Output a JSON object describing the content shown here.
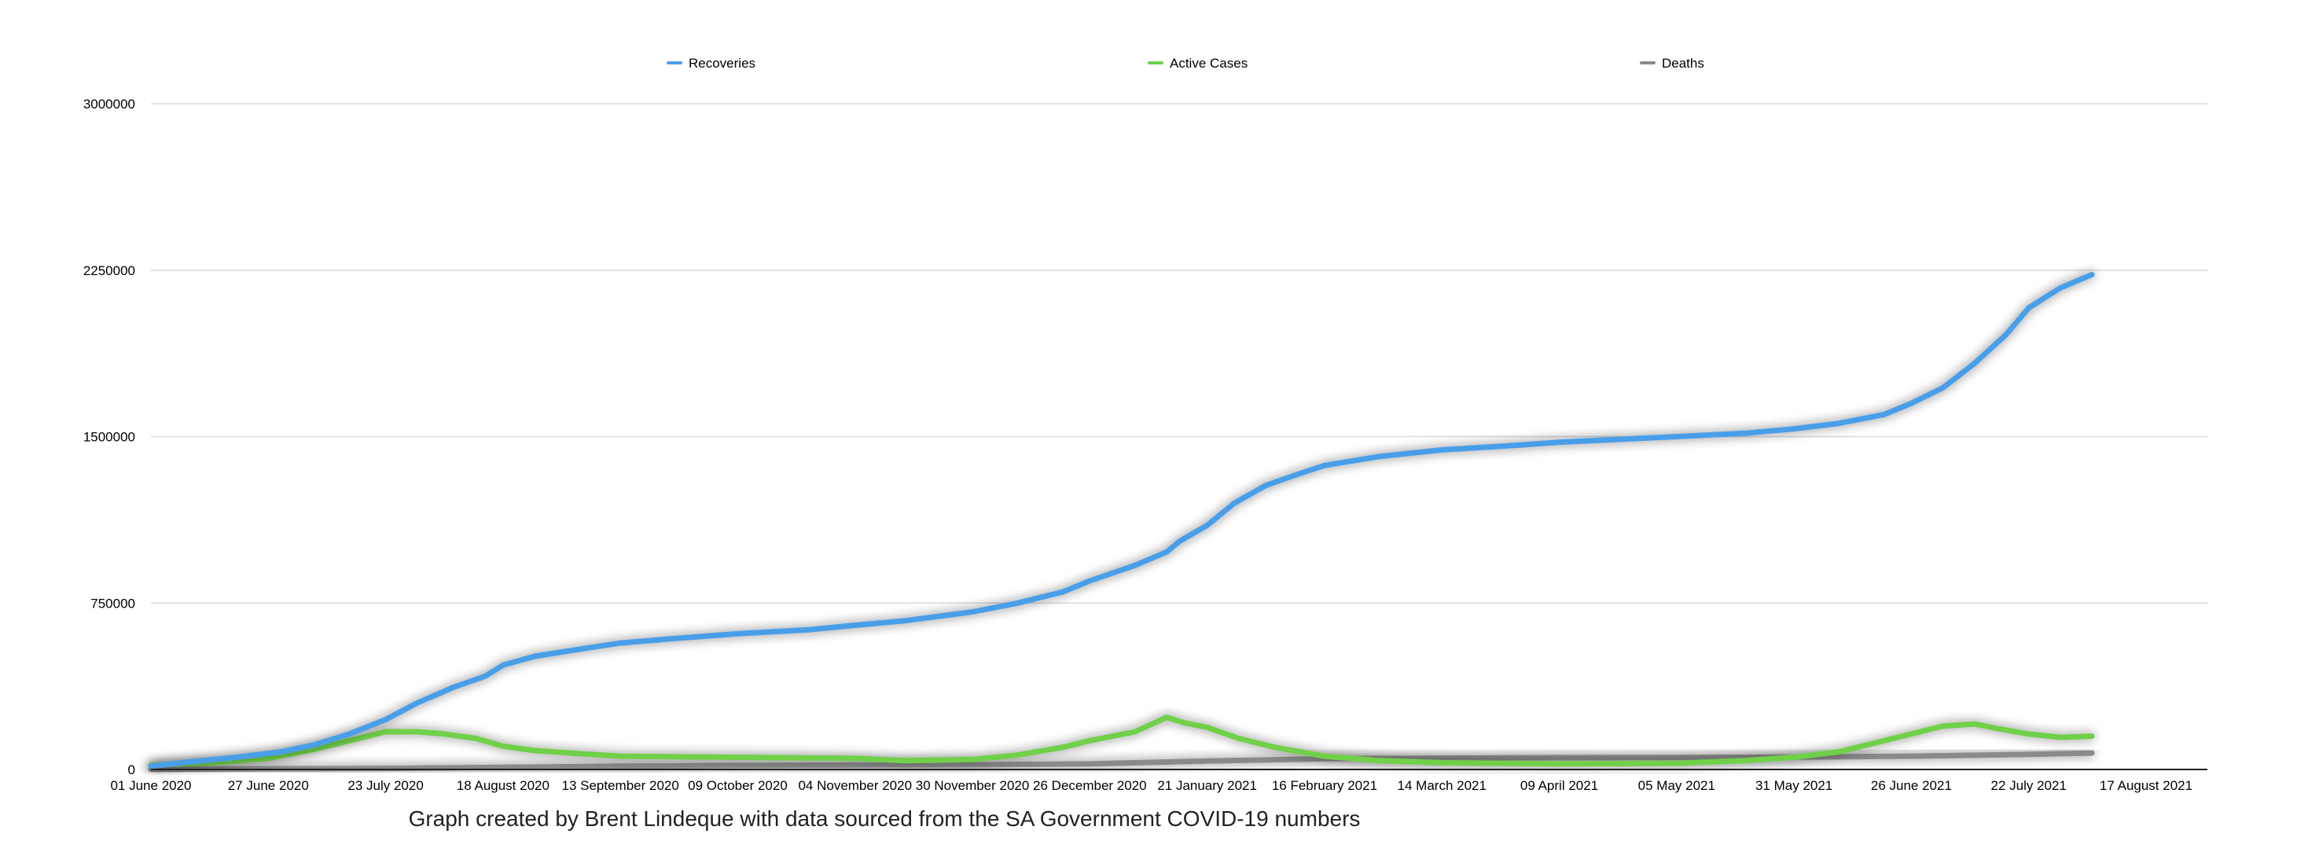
{
  "chart_data": {
    "type": "line",
    "title": "",
    "xlabel": "",
    "ylabel": "",
    "caption": "Graph created by Brent Lindeque with data sourced from the SA Government COVID-19 numbers",
    "ylim": [
      0,
      3000000
    ],
    "yticks": [
      "0",
      "750000",
      "1500000",
      "2250000",
      "3000000"
    ],
    "yticks_values": [
      0,
      750000,
      1500000,
      2250000,
      3000000
    ],
    "xlim": [
      "2020-06-01",
      "2021-08-17"
    ],
    "xticks": [
      "01 June 2020",
      "27 June 2020",
      "23 July 2020",
      "18 August 2020",
      "13 September 2020",
      "09 October 2020",
      "04 November 2020",
      "30 November 2020",
      "26 December 2020",
      "21 January 2021",
      "16 February 2021",
      "14 March 2021",
      "09 April 2021",
      "05 May 2021",
      "31 May 2021",
      "26 June 2021",
      "22 July 2021",
      "17 August 2021"
    ],
    "xticks_dates": [
      "2020-06-01",
      "2020-06-27",
      "2020-07-23",
      "2020-08-18",
      "2020-09-13",
      "2020-10-09",
      "2020-11-04",
      "2020-11-30",
      "2020-12-26",
      "2021-01-21",
      "2021-02-16",
      "2021-03-14",
      "2021-04-09",
      "2021-05-05",
      "2021-05-31",
      "2021-06-26",
      "2021-07-22",
      "2021-08-17"
    ],
    "grid": true,
    "legend_position": "top",
    "series": [
      {
        "name": "Recoveries",
        "color": "#4a9ee8",
        "points": [
          [
            "2020-06-01",
            15000
          ],
          [
            "2020-06-10",
            35000
          ],
          [
            "2020-06-20",
            55000
          ],
          [
            "2020-06-30",
            80000
          ],
          [
            "2020-07-07",
            110000
          ],
          [
            "2020-07-15",
            160000
          ],
          [
            "2020-07-23",
            225000
          ],
          [
            "2020-07-30",
            300000
          ],
          [
            "2020-08-07",
            370000
          ],
          [
            "2020-08-14",
            420000
          ],
          [
            "2020-08-18",
            470000
          ],
          [
            "2020-08-25",
            510000
          ],
          [
            "2020-09-05",
            545000
          ],
          [
            "2020-09-13",
            570000
          ],
          [
            "2020-09-25",
            590000
          ],
          [
            "2020-10-09",
            612000
          ],
          [
            "2020-10-25",
            630000
          ],
          [
            "2020-11-04",
            650000
          ],
          [
            "2020-11-15",
            670000
          ],
          [
            "2020-11-30",
            710000
          ],
          [
            "2020-12-10",
            750000
          ],
          [
            "2020-12-20",
            800000
          ],
          [
            "2020-12-26",
            850000
          ],
          [
            "2021-01-05",
            920000
          ],
          [
            "2021-01-12",
            980000
          ],
          [
            "2021-01-15",
            1030000
          ],
          [
            "2021-01-21",
            1100000
          ],
          [
            "2021-01-27",
            1200000
          ],
          [
            "2021-02-03",
            1280000
          ],
          [
            "2021-02-10",
            1330000
          ],
          [
            "2021-02-16",
            1370000
          ],
          [
            "2021-02-28",
            1410000
          ],
          [
            "2021-03-14",
            1440000
          ],
          [
            "2021-03-30",
            1460000
          ],
          [
            "2021-04-09",
            1475000
          ],
          [
            "2021-04-25",
            1490000
          ],
          [
            "2021-05-05",
            1500000
          ],
          [
            "2021-05-20",
            1515000
          ],
          [
            "2021-05-31",
            1535000
          ],
          [
            "2021-06-10",
            1560000
          ],
          [
            "2021-06-20",
            1600000
          ],
          [
            "2021-06-26",
            1650000
          ],
          [
            "2021-07-03",
            1720000
          ],
          [
            "2021-07-10",
            1830000
          ],
          [
            "2021-07-17",
            1960000
          ],
          [
            "2021-07-22",
            2080000
          ],
          [
            "2021-07-29",
            2170000
          ],
          [
            "2021-08-05",
            2230000
          ]
        ]
      },
      {
        "name": "Active Cases",
        "color": "#6fd04a",
        "points": [
          [
            "2020-06-01",
            20000
          ],
          [
            "2020-06-15",
            30000
          ],
          [
            "2020-06-27",
            50000
          ],
          [
            "2020-07-07",
            90000
          ],
          [
            "2020-07-15",
            130000
          ],
          [
            "2020-07-23",
            170000
          ],
          [
            "2020-07-30",
            170000
          ],
          [
            "2020-08-05",
            160000
          ],
          [
            "2020-08-12",
            140000
          ],
          [
            "2020-08-18",
            105000
          ],
          [
            "2020-08-25",
            85000
          ],
          [
            "2020-09-05",
            70000
          ],
          [
            "2020-09-13",
            60000
          ],
          [
            "2020-10-09",
            55000
          ],
          [
            "2020-11-04",
            50000
          ],
          [
            "2020-11-15",
            40000
          ],
          [
            "2020-11-30",
            45000
          ],
          [
            "2020-12-10",
            65000
          ],
          [
            "2020-12-20",
            100000
          ],
          [
            "2020-12-26",
            130000
          ],
          [
            "2021-01-05",
            170000
          ],
          [
            "2021-01-12",
            235000
          ],
          [
            "2021-01-16",
            210000
          ],
          [
            "2021-01-21",
            190000
          ],
          [
            "2021-01-28",
            140000
          ],
          [
            "2021-02-05",
            100000
          ],
          [
            "2021-02-16",
            60000
          ],
          [
            "2021-02-28",
            40000
          ],
          [
            "2021-03-14",
            30000
          ],
          [
            "2021-04-09",
            25000
          ],
          [
            "2021-05-05",
            28000
          ],
          [
            "2021-05-20",
            40000
          ],
          [
            "2021-05-31",
            55000
          ],
          [
            "2021-06-10",
            80000
          ],
          [
            "2021-06-20",
            130000
          ],
          [
            "2021-06-26",
            160000
          ],
          [
            "2021-07-03",
            195000
          ],
          [
            "2021-07-10",
            205000
          ],
          [
            "2021-07-15",
            185000
          ],
          [
            "2021-07-22",
            160000
          ],
          [
            "2021-07-29",
            145000
          ],
          [
            "2021-08-05",
            150000
          ]
        ]
      },
      {
        "name": "Deaths",
        "color": "#8a8a8a",
        "points": [
          [
            "2020-06-01",
            1000
          ],
          [
            "2020-07-23",
            5000
          ],
          [
            "2020-08-18",
            10000
          ],
          [
            "2020-09-13",
            15000
          ],
          [
            "2020-10-09",
            18000
          ],
          [
            "2020-11-04",
            20000
          ],
          [
            "2020-11-30",
            21000
          ],
          [
            "2020-12-26",
            25000
          ],
          [
            "2021-01-21",
            38000
          ],
          [
            "2021-02-16",
            48000
          ],
          [
            "2021-03-14",
            51000
          ],
          [
            "2021-04-09",
            53000
          ],
          [
            "2021-05-05",
            54000
          ],
          [
            "2021-05-31",
            56000
          ],
          [
            "2021-06-26",
            60000
          ],
          [
            "2021-07-22",
            68000
          ],
          [
            "2021-08-05",
            74000
          ]
        ]
      }
    ]
  }
}
